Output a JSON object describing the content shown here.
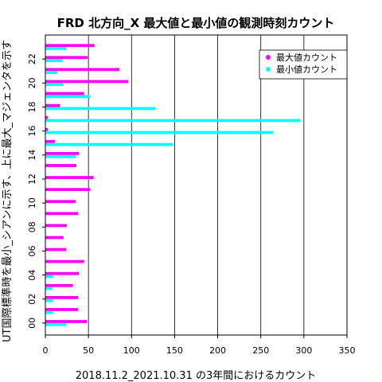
{
  "chart_data": {
    "type": "bar",
    "orientation": "horizontal",
    "title": "FRD 北方向_X 最大値と最小値の観測時刻カウント",
    "xlabel": "2018.11.2_2021.10.31 の3年間におけるカウント",
    "ylabel": "UT国際標準時を最小_シアンに示す、上に最大_マジェンタを示す",
    "xlim": [
      0,
      350
    ],
    "xticks": [
      0,
      50,
      100,
      150,
      200,
      250,
      300,
      350
    ],
    "ylim": [
      -1,
      24
    ],
    "yticks": [
      0,
      2,
      4,
      6,
      8,
      10,
      12,
      14,
      16,
      18,
      20,
      22
    ],
    "ytick_labels": [
      "00",
      "02",
      "04",
      "06",
      "08",
      "10",
      "12",
      "14",
      "16",
      "18",
      "20",
      "22"
    ],
    "grid": "vertical",
    "legend_position": "top-right",
    "categories": [
      0,
      1,
      2,
      3,
      4,
      5,
      6,
      7,
      8,
      9,
      10,
      11,
      12,
      13,
      14,
      15,
      16,
      17,
      18,
      19,
      20,
      21,
      22,
      23
    ],
    "series": [
      {
        "name": "最大値カウント",
        "color": "#ff00ff",
        "values": [
          48,
          38,
          38,
          32,
          39,
          45,
          24,
          21,
          25,
          38,
          35,
          52,
          56,
          36,
          39,
          11,
          3,
          3,
          17,
          45,
          96,
          86,
          49,
          57
        ]
      },
      {
        "name": "最小値カウント",
        "color": "#00ffff",
        "values": [
          24,
          9,
          9,
          8,
          9,
          0,
          0,
          0,
          0,
          0,
          0,
          0,
          0,
          0,
          35,
          148,
          264,
          296,
          128,
          52,
          21,
          14,
          20,
          24
        ]
      }
    ]
  }
}
